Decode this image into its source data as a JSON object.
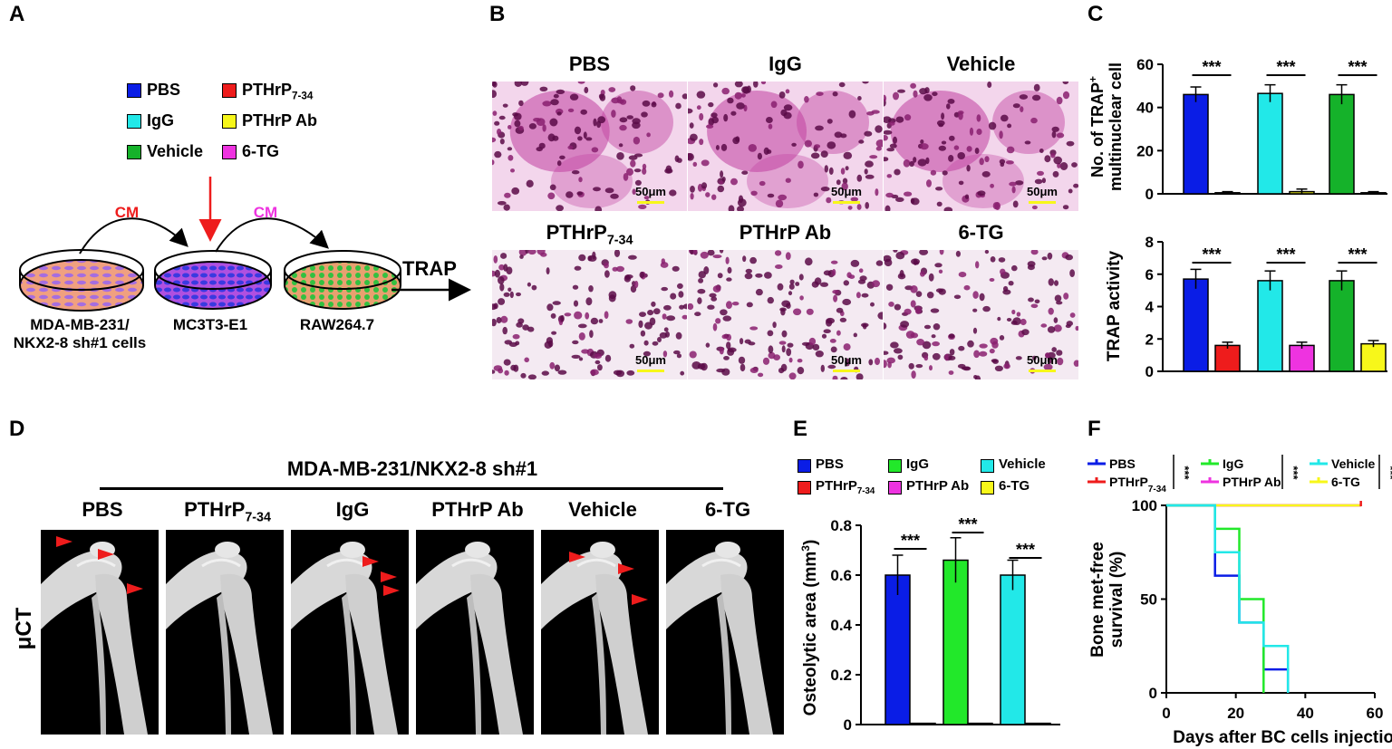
{
  "panels": {
    "A": {
      "letter": "A",
      "legend": [
        {
          "label": "PBS",
          "color": "#0a1de6"
        },
        {
          "label": "PTHrP",
          "sub": "7-34",
          "color": "#ee1c1c"
        },
        {
          "label": "IgG",
          "color": "#22e8e8"
        },
        {
          "label": "PTHrP Ab",
          "color": "#f7f71a"
        },
        {
          "label": "Vehicle",
          "color": "#15b22a"
        },
        {
          "label": "6-TG",
          "color": "#ee33e0"
        }
      ],
      "cm_left": "CM",
      "cm_right": "CM",
      "trap": "TRAP",
      "dish1_line1": "MDA-MB-231/",
      "dish1_line2": "NKX2-8 sh#1 cells",
      "dish2": "MC3T3-E1",
      "dish3": "RAW264.7"
    },
    "B": {
      "letter": "B",
      "titles": [
        {
          "label": "PBS"
        },
        {
          "label": "IgG"
        },
        {
          "label": "Vehicle"
        },
        {
          "label": "PTHrP",
          "sub": "7-34"
        },
        {
          "label": "PTHrP Ab"
        },
        {
          "label": "6-TG"
        }
      ],
      "scale_bar": "50μm"
    },
    "C": {
      "letter": "C",
      "top": {
        "ylabel_line1": "No. of TRAP",
        "ylabel_sup": "+",
        "ylabel_line2": "multinuclear cell",
        "yticks": [
          "0",
          "20",
          "40",
          "60"
        ],
        "sig": "***"
      },
      "bottom": {
        "ylabel": "TRAP activity",
        "yticks": [
          "0",
          "2",
          "4",
          "6",
          "8"
        ],
        "sig": "***"
      }
    },
    "D": {
      "letter": "D",
      "header": "MDA-MB-231/NKX2-8 sh#1",
      "row_label": "μCT",
      "titles": [
        {
          "label": "PBS"
        },
        {
          "label": "PTHrP",
          "sub": "7-34"
        },
        {
          "label": "IgG"
        },
        {
          "label": "PTHrP Ab"
        },
        {
          "label": "Vehicle"
        },
        {
          "label": "6-TG"
        }
      ]
    },
    "E": {
      "letter": "E",
      "legend": [
        {
          "label": "PBS",
          "color": "#0a1de6"
        },
        {
          "label": "IgG",
          "color": "#22e82a"
        },
        {
          "label": "Vehicle",
          "color": "#22e8e8"
        },
        {
          "label": "PTHrP",
          "sub": "7-34",
          "color": "#ee1c1c"
        },
        {
          "label": "PTHrP Ab",
          "color": "#ee33e0"
        },
        {
          "label": "6-TG",
          "color": "#f7f71a"
        }
      ],
      "ylabel": "Osteolytic area (mm",
      "ylabel_sup": "3",
      "ylabel_end": ")",
      "yticks": [
        "0",
        "0.2",
        "0.4",
        "0.6",
        "0.8"
      ],
      "sig": "***"
    },
    "F": {
      "letter": "F",
      "legend": [
        {
          "label": "PBS",
          "color": "#0a1de6"
        },
        {
          "label": "PTHrP",
          "sub": "7-34",
          "color": "#ee1c1c"
        },
        {
          "label": "IgG",
          "color": "#22e82a"
        },
        {
          "label": "PTHrP Ab",
          "color": "#ee33e0"
        },
        {
          "label": "Vehicle",
          "color": "#22e8e8"
        },
        {
          "label": "6-TG",
          "color": "#f7f71a"
        }
      ],
      "sig": "***",
      "ylabel_line1": "Bone met-free",
      "ylabel_line2": "survival (%)",
      "xlabel": "Days after BC cells injection",
      "xticks": [
        "0",
        "20",
        "40",
        "60"
      ],
      "yticks": [
        "0",
        "50",
        "100"
      ]
    }
  },
  "chart_data": [
    {
      "type": "bar",
      "panel": "C-top",
      "ylabel": "No. of TRAP+ multinuclear cell",
      "ylim": [
        0,
        60
      ],
      "categories": [
        "PBS",
        "PTHrP 7-34",
        "IgG",
        "PTHrP Ab",
        "Vehicle",
        "6-TG"
      ],
      "values": [
        46,
        0.5,
        46.5,
        1,
        46,
        0.5
      ],
      "errors": [
        3.5,
        0.5,
        4,
        1.2,
        4.5,
        0.5
      ],
      "colors": [
        "#0a1de6",
        "#ee1c1c",
        "#22e8e8",
        "#f7f71a",
        "#15b22a",
        "#ee33e0"
      ]
    },
    {
      "type": "bar",
      "panel": "C-bottom",
      "ylabel": "TRAP activity",
      "ylim": [
        0,
        8
      ],
      "categories": [
        "PBS",
        "PTHrP 7-34",
        "IgG",
        "PTHrP Ab",
        "Vehicle",
        "6-TG"
      ],
      "values": [
        5.7,
        1.6,
        5.6,
        1.6,
        5.6,
        1.7
      ],
      "errors": [
        0.6,
        0.2,
        0.6,
        0.2,
        0.6,
        0.2
      ],
      "colors": [
        "#0a1de6",
        "#ee1c1c",
        "#22e8e8",
        "#ee33e0",
        "#15b22a",
        "#f7f71a"
      ]
    },
    {
      "type": "bar",
      "panel": "E",
      "ylabel": "Osteolytic area (mm3)",
      "ylim": [
        0,
        0.8
      ],
      "categories": [
        "PBS",
        "PTHrP 7-34",
        "IgG",
        "PTHrP Ab",
        "Vehicle",
        "6-TG"
      ],
      "values": [
        0.6,
        0.005,
        0.66,
        0.005,
        0.6,
        0.005
      ],
      "errors": [
        0.08,
        0,
        0.09,
        0,
        0.06,
        0
      ],
      "colors": [
        "#0a1de6",
        "#ee1c1c",
        "#22e82a",
        "#ee33e0",
        "#22e8e8",
        "#f7f71a"
      ]
    },
    {
      "type": "line",
      "panel": "F",
      "xlabel": "Days after BC cells injection",
      "ylabel": "Bone met-free survival (%)",
      "xlim": [
        0,
        60
      ],
      "ylim": [
        0,
        100
      ],
      "series": [
        {
          "name": "PBS",
          "color": "#0a1de6",
          "steps": [
            [
              0,
              100
            ],
            [
              14,
              100
            ],
            [
              14,
              62.5
            ],
            [
              21,
              62.5
            ],
            [
              21,
              37.5
            ],
            [
              28,
              37.5
            ],
            [
              28,
              12.5
            ],
            [
              35,
              12.5
            ],
            [
              35,
              0
            ]
          ]
        },
        {
          "name": "IgG",
          "color": "#22e82a",
          "steps": [
            [
              0,
              100
            ],
            [
              14,
              100
            ],
            [
              14,
              87.5
            ],
            [
              21,
              87.5
            ],
            [
              21,
              50
            ],
            [
              28,
              50
            ],
            [
              28,
              0
            ]
          ]
        },
        {
          "name": "Vehicle",
          "color": "#22e8e8",
          "steps": [
            [
              0,
              100
            ],
            [
              14,
              100
            ],
            [
              14,
              75
            ],
            [
              21,
              75
            ],
            [
              21,
              37.5
            ],
            [
              28,
              37.5
            ],
            [
              28,
              25
            ],
            [
              35,
              25
            ],
            [
              35,
              0
            ]
          ]
        },
        {
          "name": "PTHrP 7-34",
          "color": "#ee1c1c",
          "steps": [
            [
              0,
              100
            ],
            [
              56,
              100
            ]
          ]
        },
        {
          "name": "PTHrP Ab",
          "color": "#ee33e0",
          "steps": [
            [
              0,
              100
            ],
            [
              56,
              100
            ]
          ]
        },
        {
          "name": "6-TG",
          "color": "#f7f71a",
          "steps": [
            [
              0,
              100
            ],
            [
              56,
              100
            ]
          ]
        }
      ]
    }
  ]
}
